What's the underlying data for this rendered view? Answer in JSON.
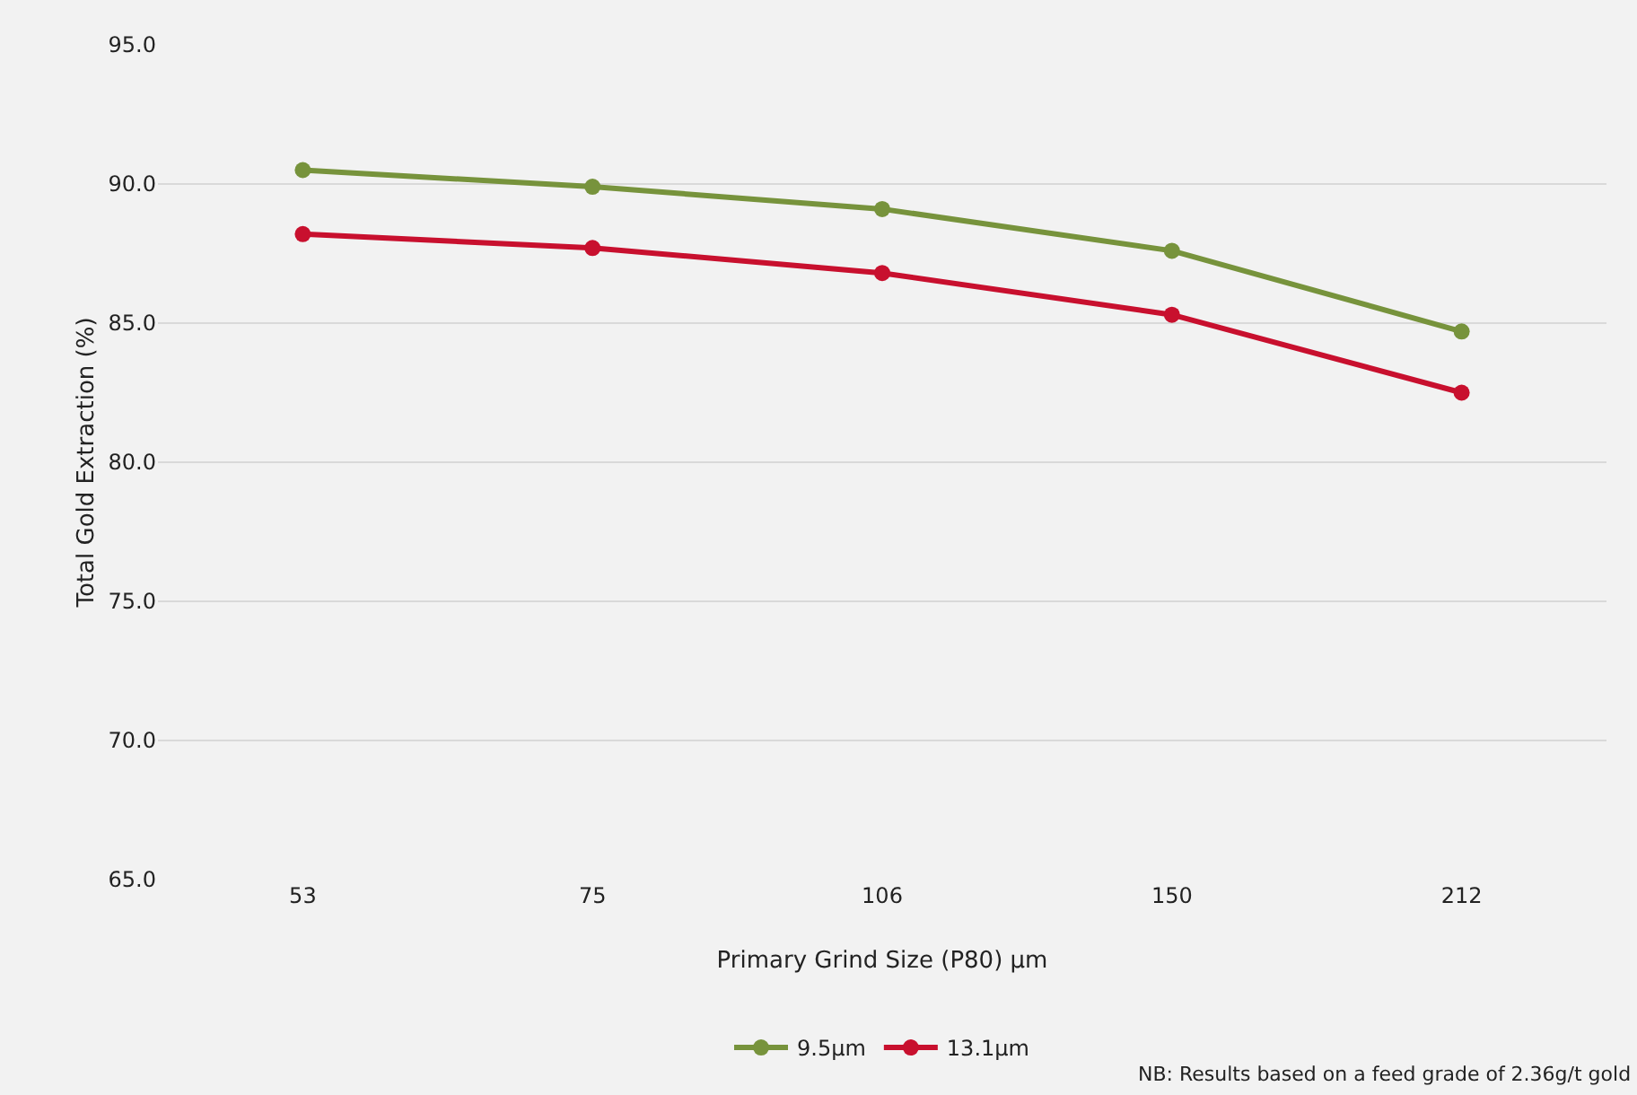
{
  "chart_data": {
    "type": "line",
    "xlabel": "Primary Grind Size (P80) µm",
    "ylabel": "Total Gold Extraction (%)",
    "categories": [
      "53",
      "75",
      "106",
      "150",
      "212"
    ],
    "series": [
      {
        "name": "9.5µm",
        "color": "#77933c",
        "values": [
          90.5,
          89.9,
          89.1,
          87.6,
          84.7
        ]
      },
      {
        "name": "13.1µm",
        "color": "#c8102e",
        "values": [
          88.2,
          87.7,
          86.8,
          85.3,
          82.5
        ]
      }
    ],
    "ylim": [
      65,
      95
    ],
    "yticks": [
      {
        "value": 65,
        "label": "65.0"
      },
      {
        "value": 70,
        "label": "70.0"
      },
      {
        "value": 75,
        "label": "75.0"
      },
      {
        "value": 80,
        "label": "80.0"
      },
      {
        "value": 85,
        "label": "85.0"
      },
      {
        "value": 90,
        "label": "90.0"
      },
      {
        "value": 95,
        "label": "95.0"
      }
    ],
    "grid": "y",
    "legend": "bottom",
    "marker": "circle",
    "line_style": "solid",
    "annotations": [
      "NB: Results based on a feed grade of 2.36g/t gold"
    ]
  }
}
